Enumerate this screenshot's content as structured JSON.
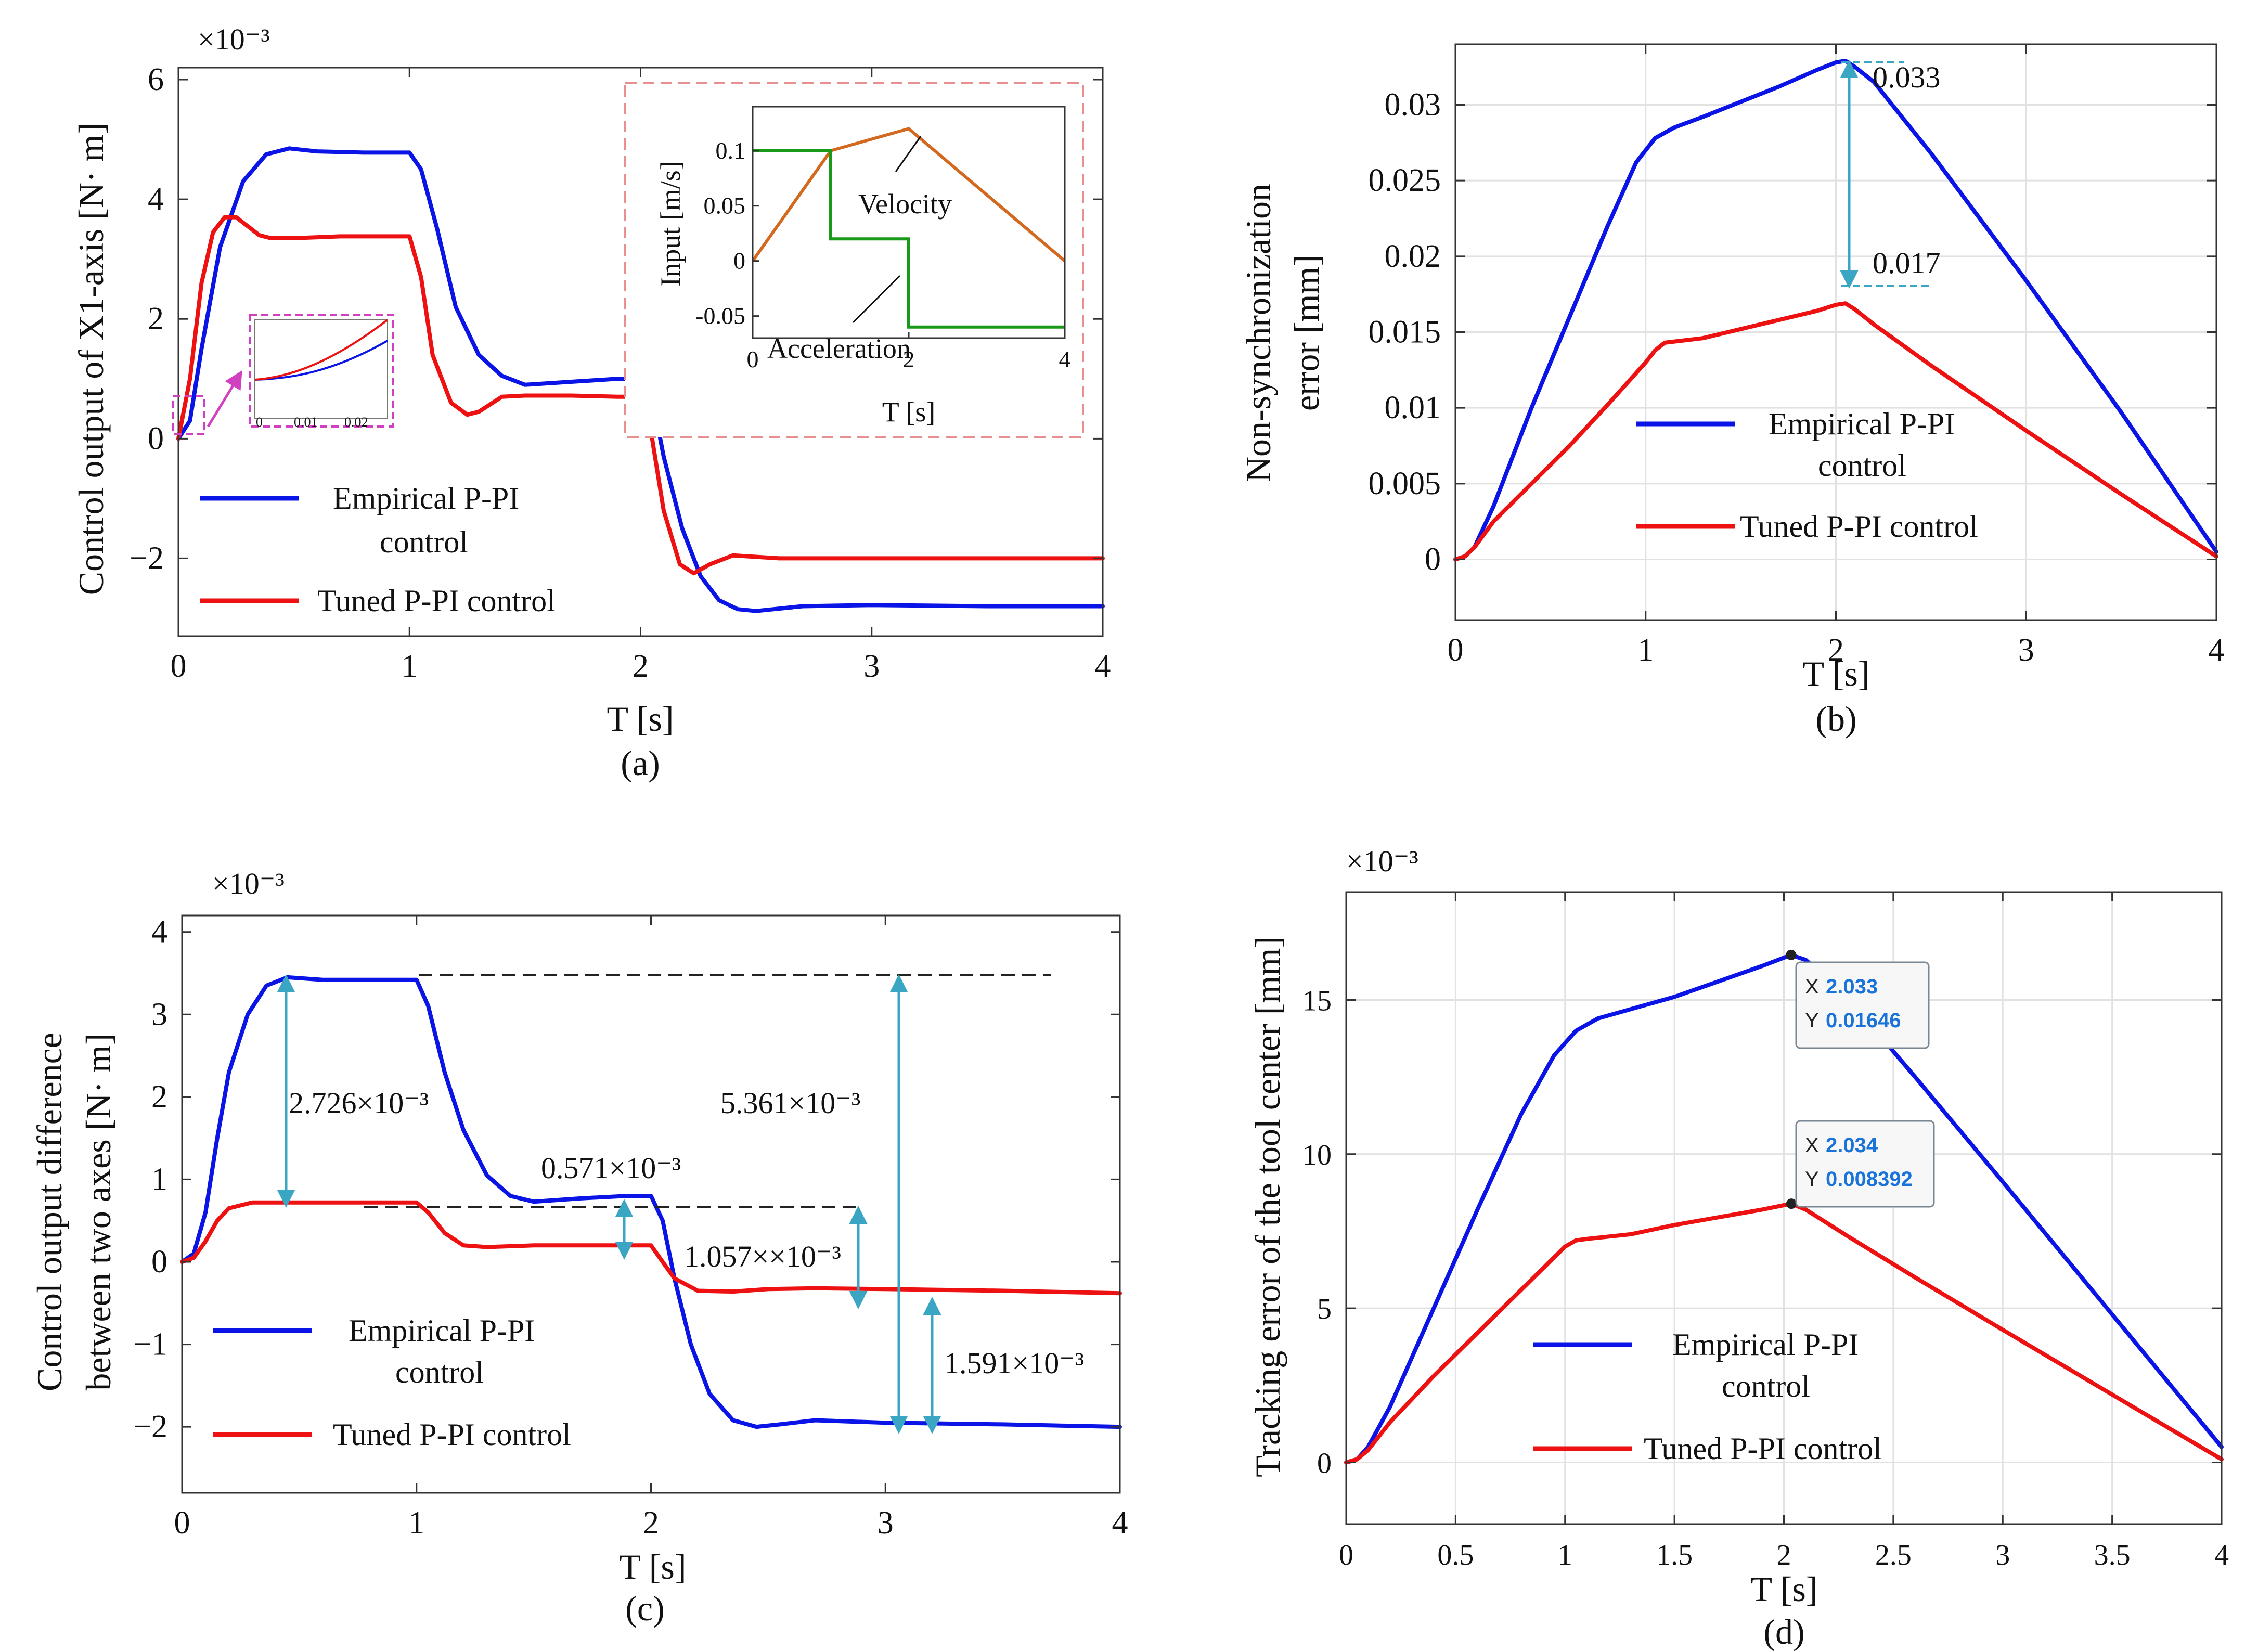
{
  "colors": {
    "empirical": "#0a14e6",
    "tuned": "#ee1111",
    "velocity": "#d2691e",
    "acceleration": "#1a9a1a",
    "arrow": "#3aa6c4",
    "inset_box": "#e89090",
    "zoom_box": "#d040c0",
    "tip_value": "#1a73d8"
  },
  "chart_data": [
    {
      "type": "line",
      "panel": "(a)",
      "ylabel": "Control output of X1-axis [N· m]",
      "xlabel": "T [s]",
      "multiplier": "×10⁻³",
      "xlim": [
        0,
        4
      ],
      "ylim": [
        -3.3,
        6.2
      ],
      "xticks": [
        "0",
        "1",
        "2",
        "3",
        "4"
      ],
      "yticks": [
        "−2",
        "0",
        "2",
        "4",
        "6"
      ],
      "legend": [
        "Empirical P-PI",
        "control",
        "Tuned P-PI control"
      ],
      "grid": false,
      "series": [
        {
          "name": "Empirical P-PI control",
          "color_key": "empirical",
          "x": [
            0,
            0.05,
            0.1,
            0.18,
            0.28,
            0.38,
            0.48,
            0.6,
            0.8,
            1.0,
            1.05,
            1.12,
            1.2,
            1.3,
            1.4,
            1.5,
            1.7,
            1.9,
            2.0,
            2.05,
            2.1,
            2.18,
            2.26,
            2.34,
            2.42,
            2.5,
            2.7,
            3.0,
            3.5,
            4.0
          ],
          "y": [
            0,
            0.3,
            1.5,
            3.2,
            4.3,
            4.75,
            4.85,
            4.8,
            4.78,
            4.78,
            4.5,
            3.5,
            2.2,
            1.4,
            1.05,
            0.9,
            0.95,
            1.0,
            1.0,
            0.7,
            -0.3,
            -1.5,
            -2.3,
            -2.7,
            -2.85,
            -2.88,
            -2.8,
            -2.78,
            -2.8,
            -2.8
          ]
        },
        {
          "name": "Tuned P-PI control",
          "color_key": "tuned",
          "x": [
            0,
            0.05,
            0.1,
            0.15,
            0.2,
            0.25,
            0.3,
            0.35,
            0.4,
            0.5,
            0.7,
            1.0,
            1.05,
            1.1,
            1.18,
            1.25,
            1.3,
            1.4,
            1.5,
            1.7,
            1.9,
            2.0,
            2.05,
            2.1,
            2.17,
            2.23,
            2.3,
            2.4,
            2.6,
            3.0,
            3.5,
            4.0
          ],
          "y": [
            0,
            1.0,
            2.6,
            3.45,
            3.7,
            3.7,
            3.55,
            3.4,
            3.35,
            3.35,
            3.38,
            3.38,
            2.7,
            1.4,
            0.6,
            0.4,
            0.45,
            0.7,
            0.72,
            0.72,
            0.7,
            0.7,
            0.0,
            -1.2,
            -2.1,
            -2.25,
            -2.1,
            -1.95,
            -2.0,
            -2.0,
            -2.0,
            -2.0
          ]
        }
      ],
      "zoom_inset": {
        "xticks": [
          "0",
          "0.01",
          "0.02"
        ]
      },
      "input_inset": {
        "ylabel": "Input [m/s]",
        "xlabel": "T [s]",
        "xlim": [
          0,
          4
        ],
        "ylim": [
          -0.07,
          0.14
        ],
        "xticks": [
          "0",
          "2",
          "4"
        ],
        "yticks": [
          "-0.05",
          "0",
          "0.05",
          "0.1"
        ],
        "series": [
          {
            "name": "Velocity",
            "color_key": "velocity",
            "x": [
              0,
              1,
              2,
              4
            ],
            "y": [
              0,
              0.1,
              0.12,
              0
            ]
          },
          {
            "name": "Acceleration",
            "color_key": "acceleration",
            "x": [
              0,
              1,
              1,
              2,
              2,
              4
            ],
            "y": [
              0.1,
              0.1,
              0.02,
              0.02,
              -0.06,
              -0.06
            ]
          }
        ],
        "labels": [
          "Velocity",
          "Acceleration"
        ]
      },
      "caption": "(a)"
    },
    {
      "type": "line",
      "panel": "(b)",
      "ylabel_lines": [
        "Non-synchronization",
        "error [mm]"
      ],
      "xlabel": "T [s]",
      "xlim": [
        0,
        4
      ],
      "ylim": [
        -0.004,
        0.034
      ],
      "xticks": [
        "0",
        "1",
        "2",
        "3",
        "4"
      ],
      "yticks": [
        "0",
        "0.005",
        "0.01",
        "0.015",
        "0.02",
        "0.025",
        "0.03"
      ],
      "legend": [
        "Empirical P-PI",
        "control",
        "Tuned P-PI control"
      ],
      "grid": true,
      "series": [
        {
          "name": "Empirical P-PI control",
          "color_key": "empirical",
          "x": [
            0,
            0.05,
            0.1,
            0.2,
            0.4,
            0.6,
            0.8,
            0.95,
            1.05,
            1.15,
            1.3,
            1.5,
            1.7,
            1.9,
            2.0,
            2.05,
            2.1,
            2.2,
            2.5,
            3.0,
            3.5,
            4.0
          ],
          "y": [
            0,
            0.0002,
            0.0008,
            0.0035,
            0.01,
            0.016,
            0.022,
            0.0262,
            0.0278,
            0.0285,
            0.0292,
            0.0302,
            0.0312,
            0.0323,
            0.0328,
            0.0329,
            0.0325,
            0.0315,
            0.0268,
            0.0184,
            0.0097,
            0.0005
          ]
        },
        {
          "name": "Tuned P-PI control",
          "color_key": "tuned",
          "x": [
            0,
            0.05,
            0.1,
            0.2,
            0.4,
            0.6,
            0.8,
            1.0,
            1.05,
            1.1,
            1.3,
            1.5,
            1.7,
            1.9,
            2.0,
            2.05,
            2.1,
            2.2,
            2.5,
            3.0,
            3.5,
            4.0
          ],
          "y": [
            0,
            0.0002,
            0.0008,
            0.0025,
            0.005,
            0.0075,
            0.0102,
            0.013,
            0.0138,
            0.0143,
            0.0146,
            0.0152,
            0.0158,
            0.0164,
            0.0168,
            0.0169,
            0.0165,
            0.0155,
            0.0128,
            0.0085,
            0.0043,
            0.0002
          ]
        }
      ],
      "annotations": [
        "0.033",
        "0.017"
      ],
      "caption": "(b)"
    },
    {
      "type": "line",
      "panel": "(c)",
      "ylabel_lines": [
        "Control output difference",
        "between two axes [N· m]"
      ],
      "xlabel": "T [s]",
      "multiplier": "×10⁻³",
      "xlim": [
        0,
        4
      ],
      "ylim": [
        -2.8,
        4.2
      ],
      "xticks": [
        "0",
        "1",
        "2",
        "3",
        "4"
      ],
      "yticks": [
        "−2",
        "−1",
        "0",
        "1",
        "2",
        "3",
        "4"
      ],
      "legend": [
        "Empirical P-PI",
        "control",
        "Tuned P-PI control"
      ],
      "grid": false,
      "series": [
        {
          "name": "Empirical P-PI control",
          "color_key": "empirical",
          "x": [
            0,
            0.05,
            0.1,
            0.15,
            0.2,
            0.28,
            0.36,
            0.45,
            0.6,
            0.8,
            1.0,
            1.05,
            1.12,
            1.2,
            1.3,
            1.4,
            1.5,
            1.7,
            1.9,
            2.0,
            2.05,
            2.1,
            2.17,
            2.25,
            2.35,
            2.45,
            2.55,
            2.7,
            3.0,
            3.5,
            4.0
          ],
          "y": [
            0,
            0.1,
            0.6,
            1.5,
            2.3,
            3.0,
            3.35,
            3.45,
            3.42,
            3.42,
            3.42,
            3.1,
            2.3,
            1.6,
            1.05,
            0.8,
            0.73,
            0.77,
            0.8,
            0.8,
            0.5,
            -0.2,
            -1.0,
            -1.6,
            -1.92,
            -2.0,
            -1.97,
            -1.92,
            -1.95,
            -1.97,
            -2.0
          ]
        },
        {
          "name": "Tuned P-PI control",
          "color_key": "tuned",
          "x": [
            0,
            0.05,
            0.1,
            0.15,
            0.2,
            0.3,
            0.4,
            0.6,
            0.8,
            1.0,
            1.05,
            1.12,
            1.2,
            1.3,
            1.5,
            1.7,
            1.9,
            2.0,
            2.05,
            2.1,
            2.2,
            2.35,
            2.5,
            2.7,
            3.0,
            3.5,
            4.0
          ],
          "y": [
            0,
            0.05,
            0.25,
            0.5,
            0.65,
            0.72,
            0.72,
            0.72,
            0.72,
            0.72,
            0.6,
            0.35,
            0.2,
            0.18,
            0.2,
            0.2,
            0.2,
            0.2,
            0.0,
            -0.2,
            -0.35,
            -0.36,
            -0.33,
            -0.32,
            -0.33,
            -0.35,
            -0.38
          ]
        }
      ],
      "annotations": [
        "2.726×10⁻³",
        "0.571×10⁻³",
        "1.057××10⁻³",
        "5.361×10⁻³",
        "1.591×10⁻³"
      ],
      "caption": "(c)"
    },
    {
      "type": "line",
      "panel": "(d)",
      "ylabel": "Tracking error of the tool center [mm]",
      "xlabel": "T [s]",
      "multiplier": "×10⁻³",
      "xlim": [
        0,
        4
      ],
      "ylim": [
        -2,
        18.5
      ],
      "xticks": [
        "0",
        "0.5",
        "1",
        "1.5",
        "2",
        "2.5",
        "3",
        "3.5",
        "4"
      ],
      "yticks": [
        "0",
        "5",
        "10",
        "15"
      ],
      "legend": [
        "Empirical P-PI",
        "control",
        "Tuned P-PI control"
      ],
      "grid": true,
      "series": [
        {
          "name": "Empirical P-PI control",
          "color_key": "empirical",
          "x": [
            0,
            0.05,
            0.1,
            0.2,
            0.4,
            0.6,
            0.8,
            0.95,
            1.05,
            1.15,
            1.3,
            1.5,
            1.7,
            1.9,
            2.033,
            2.1,
            2.3,
            2.6,
            3.0,
            3.5,
            4.0
          ],
          "y": [
            0,
            0.1,
            0.5,
            1.8,
            5.0,
            8.2,
            11.3,
            13.2,
            14.0,
            14.4,
            14.7,
            15.1,
            15.6,
            16.1,
            16.46,
            16.3,
            15.0,
            12.5,
            9.1,
            4.8,
            0.5
          ]
        },
        {
          "name": "Tuned P-PI control",
          "color_key": "tuned",
          "x": [
            0,
            0.05,
            0.1,
            0.2,
            0.4,
            0.6,
            0.8,
            1.0,
            1.05,
            1.1,
            1.3,
            1.5,
            1.7,
            1.9,
            2.034,
            2.1,
            2.3,
            2.6,
            3.0,
            3.5,
            4.0
          ],
          "y": [
            0,
            0.1,
            0.4,
            1.3,
            2.8,
            4.2,
            5.6,
            7.0,
            7.2,
            7.25,
            7.4,
            7.7,
            7.95,
            8.2,
            8.392,
            8.2,
            7.3,
            6.0,
            4.3,
            2.2,
            0.1
          ]
        }
      ],
      "datatips": [
        {
          "x_label": "X",
          "x": "2.033",
          "y_label": "Y",
          "y": "0.01646"
        },
        {
          "x_label": "X",
          "x": "2.034",
          "y_label": "Y",
          "y": "0.008392"
        }
      ],
      "caption": "(d)"
    }
  ]
}
